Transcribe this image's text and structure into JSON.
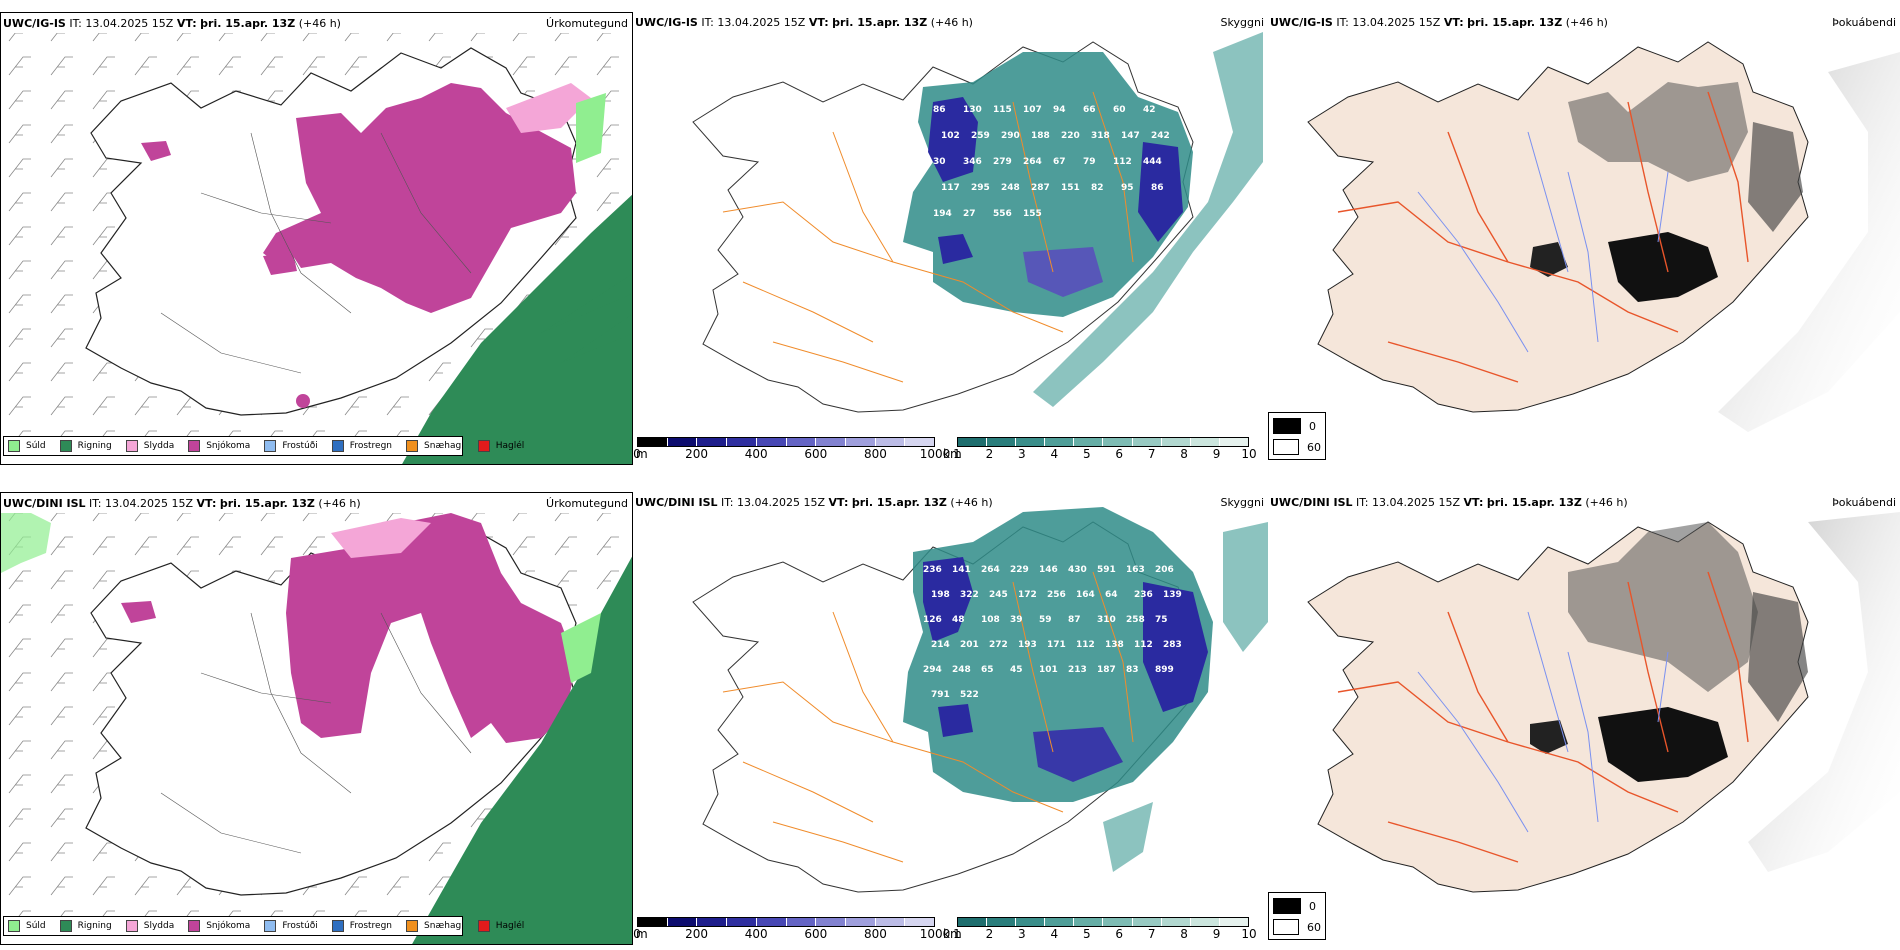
{
  "panels": [
    {
      "title_model": "UWC/IG-IS",
      "title_it_label": "IT:",
      "title_it": "13.04.2025 15Z",
      "title_vt_label": "VT:",
      "title_vt": "þri. 15.apr. 13Z",
      "title_lead": "(+46 h)",
      "label": "Úrkomutegund"
    },
    {
      "title_model": "UWC/IG-IS",
      "title_it_label": "IT:",
      "title_it": "13.04.2025 15Z",
      "title_vt_label": "VT:",
      "title_vt": "þri. 15.apr. 13Z",
      "title_lead": "(+46 h)",
      "label": "Skyggni"
    },
    {
      "title_model": "UWC/IG-IS",
      "title_it_label": "IT:",
      "title_it": "13.04.2025 15Z",
      "title_vt_label": "VT:",
      "title_vt": "þri. 15.apr. 13Z",
      "title_lead": "(+46 h)",
      "label": "Þokuábendi"
    },
    {
      "title_model": "UWC/DINI ISL",
      "title_it_label": "IT:",
      "title_it": "13.04.2025 15Z",
      "title_vt_label": "VT:",
      "title_vt": "þri. 15.apr. 13Z",
      "title_lead": "(+46 h)",
      "label": "Úrkomutegund"
    },
    {
      "title_model": "UWC/DINI ISL",
      "title_it_label": "IT:",
      "title_it": "13.04.2025 15Z",
      "title_vt_label": "VT:",
      "title_vt": "þri. 15.apr. 13Z",
      "title_lead": "(+46 h)",
      "label": "Skyggni"
    },
    {
      "title_model": "UWC/DINI ISL",
      "title_it_label": "IT:",
      "title_it": "13.04.2025 15Z",
      "title_vt_label": "VT:",
      "title_vt": "þri. 15.apr. 13Z",
      "title_lead": "(+46 h)",
      "label": "Þokuábendi"
    }
  ],
  "precip_legend": [
    {
      "label": "Súld",
      "color": "#90ee90"
    },
    {
      "label": "Rigning",
      "color": "#2e8b57"
    },
    {
      "label": "Slydda",
      "color": "#f4a6d7"
    },
    {
      "label": "Snjókoma",
      "color": "#c0449a"
    },
    {
      "label": "Frostúði",
      "color": "#8fbcf0"
    },
    {
      "label": "Frostregn",
      "color": "#2f6fc0"
    },
    {
      "label": "Snæhagl",
      "color": "#f0901e"
    },
    {
      "label": "Haglél",
      "color": "#e31a1c"
    }
  ],
  "visibility_scales": {
    "ceiling": {
      "unit": "m",
      "ticks": [
        "0",
        "200",
        "400",
        "600",
        "800",
        "1000"
      ],
      "colors": [
        "#000000",
        "#0c0c6e",
        "#1e1e8c",
        "#2f2fa0",
        "#4747b4",
        "#6464c4",
        "#8282d0",
        "#9f9fdc",
        "#bcbce6",
        "#d6d6f0"
      ]
    },
    "visibility": {
      "unit": "km",
      "ticks": [
        "1",
        "2",
        "3",
        "4",
        "5",
        "6",
        "7",
        "8",
        "9",
        "10"
      ],
      "colors": [
        "#1e6e6e",
        "#2a7e7c",
        "#3a8e8a",
        "#4f9e98",
        "#66aea6",
        "#7ebcb4",
        "#98cac2",
        "#b2d8d0",
        "#cce6de",
        "#e6f2ee"
      ]
    }
  },
  "fog_key": [
    {
      "label": "0",
      "color": "#000000"
    },
    {
      "label": "60",
      "color": "#ffffff"
    }
  ],
  "elevation_labels_top": [
    "86",
    "130",
    "115",
    "107",
    "94",
    "66",
    "60",
    "42",
    "102",
    "259",
    "290",
    "188",
    "220",
    "318",
    "147",
    "242",
    "30",
    "346",
    "279",
    "264",
    "67",
    "79",
    "112",
    "444",
    "117",
    "295",
    "248",
    "287",
    "151",
    "82",
    "95",
    "86",
    "194",
    "27",
    "556",
    "155"
  ],
  "elevation_labels_bottom": [
    "236",
    "141",
    "264",
    "229",
    "146",
    "430",
    "591",
    "163",
    "206",
    "198",
    "322",
    "245",
    "172",
    "256",
    "164",
    "64",
    "236",
    "139",
    "126",
    "48",
    "108",
    "39",
    "59",
    "87",
    "310",
    "258",
    "75",
    "214",
    "201",
    "272",
    "193",
    "171",
    "112",
    "138",
    "112",
    "283",
    "294",
    "248",
    "65",
    "45",
    "101",
    "213",
    "187",
    "83",
    "899",
    "791",
    "522"
  ],
  "colors": {
    "land": "#f5e6da",
    "outline": "#222222",
    "roads": "#f08c2c",
    "roads_fog": "#e8552a",
    "rivers": "#7a90f0",
    "rain": "#2e8b57",
    "drizzle": "#90ee90",
    "sleet": "#f4a6d7",
    "snow": "#c0449a",
    "vis_teal": "#2f8c88",
    "vis_blue": "#2a2aa0"
  }
}
